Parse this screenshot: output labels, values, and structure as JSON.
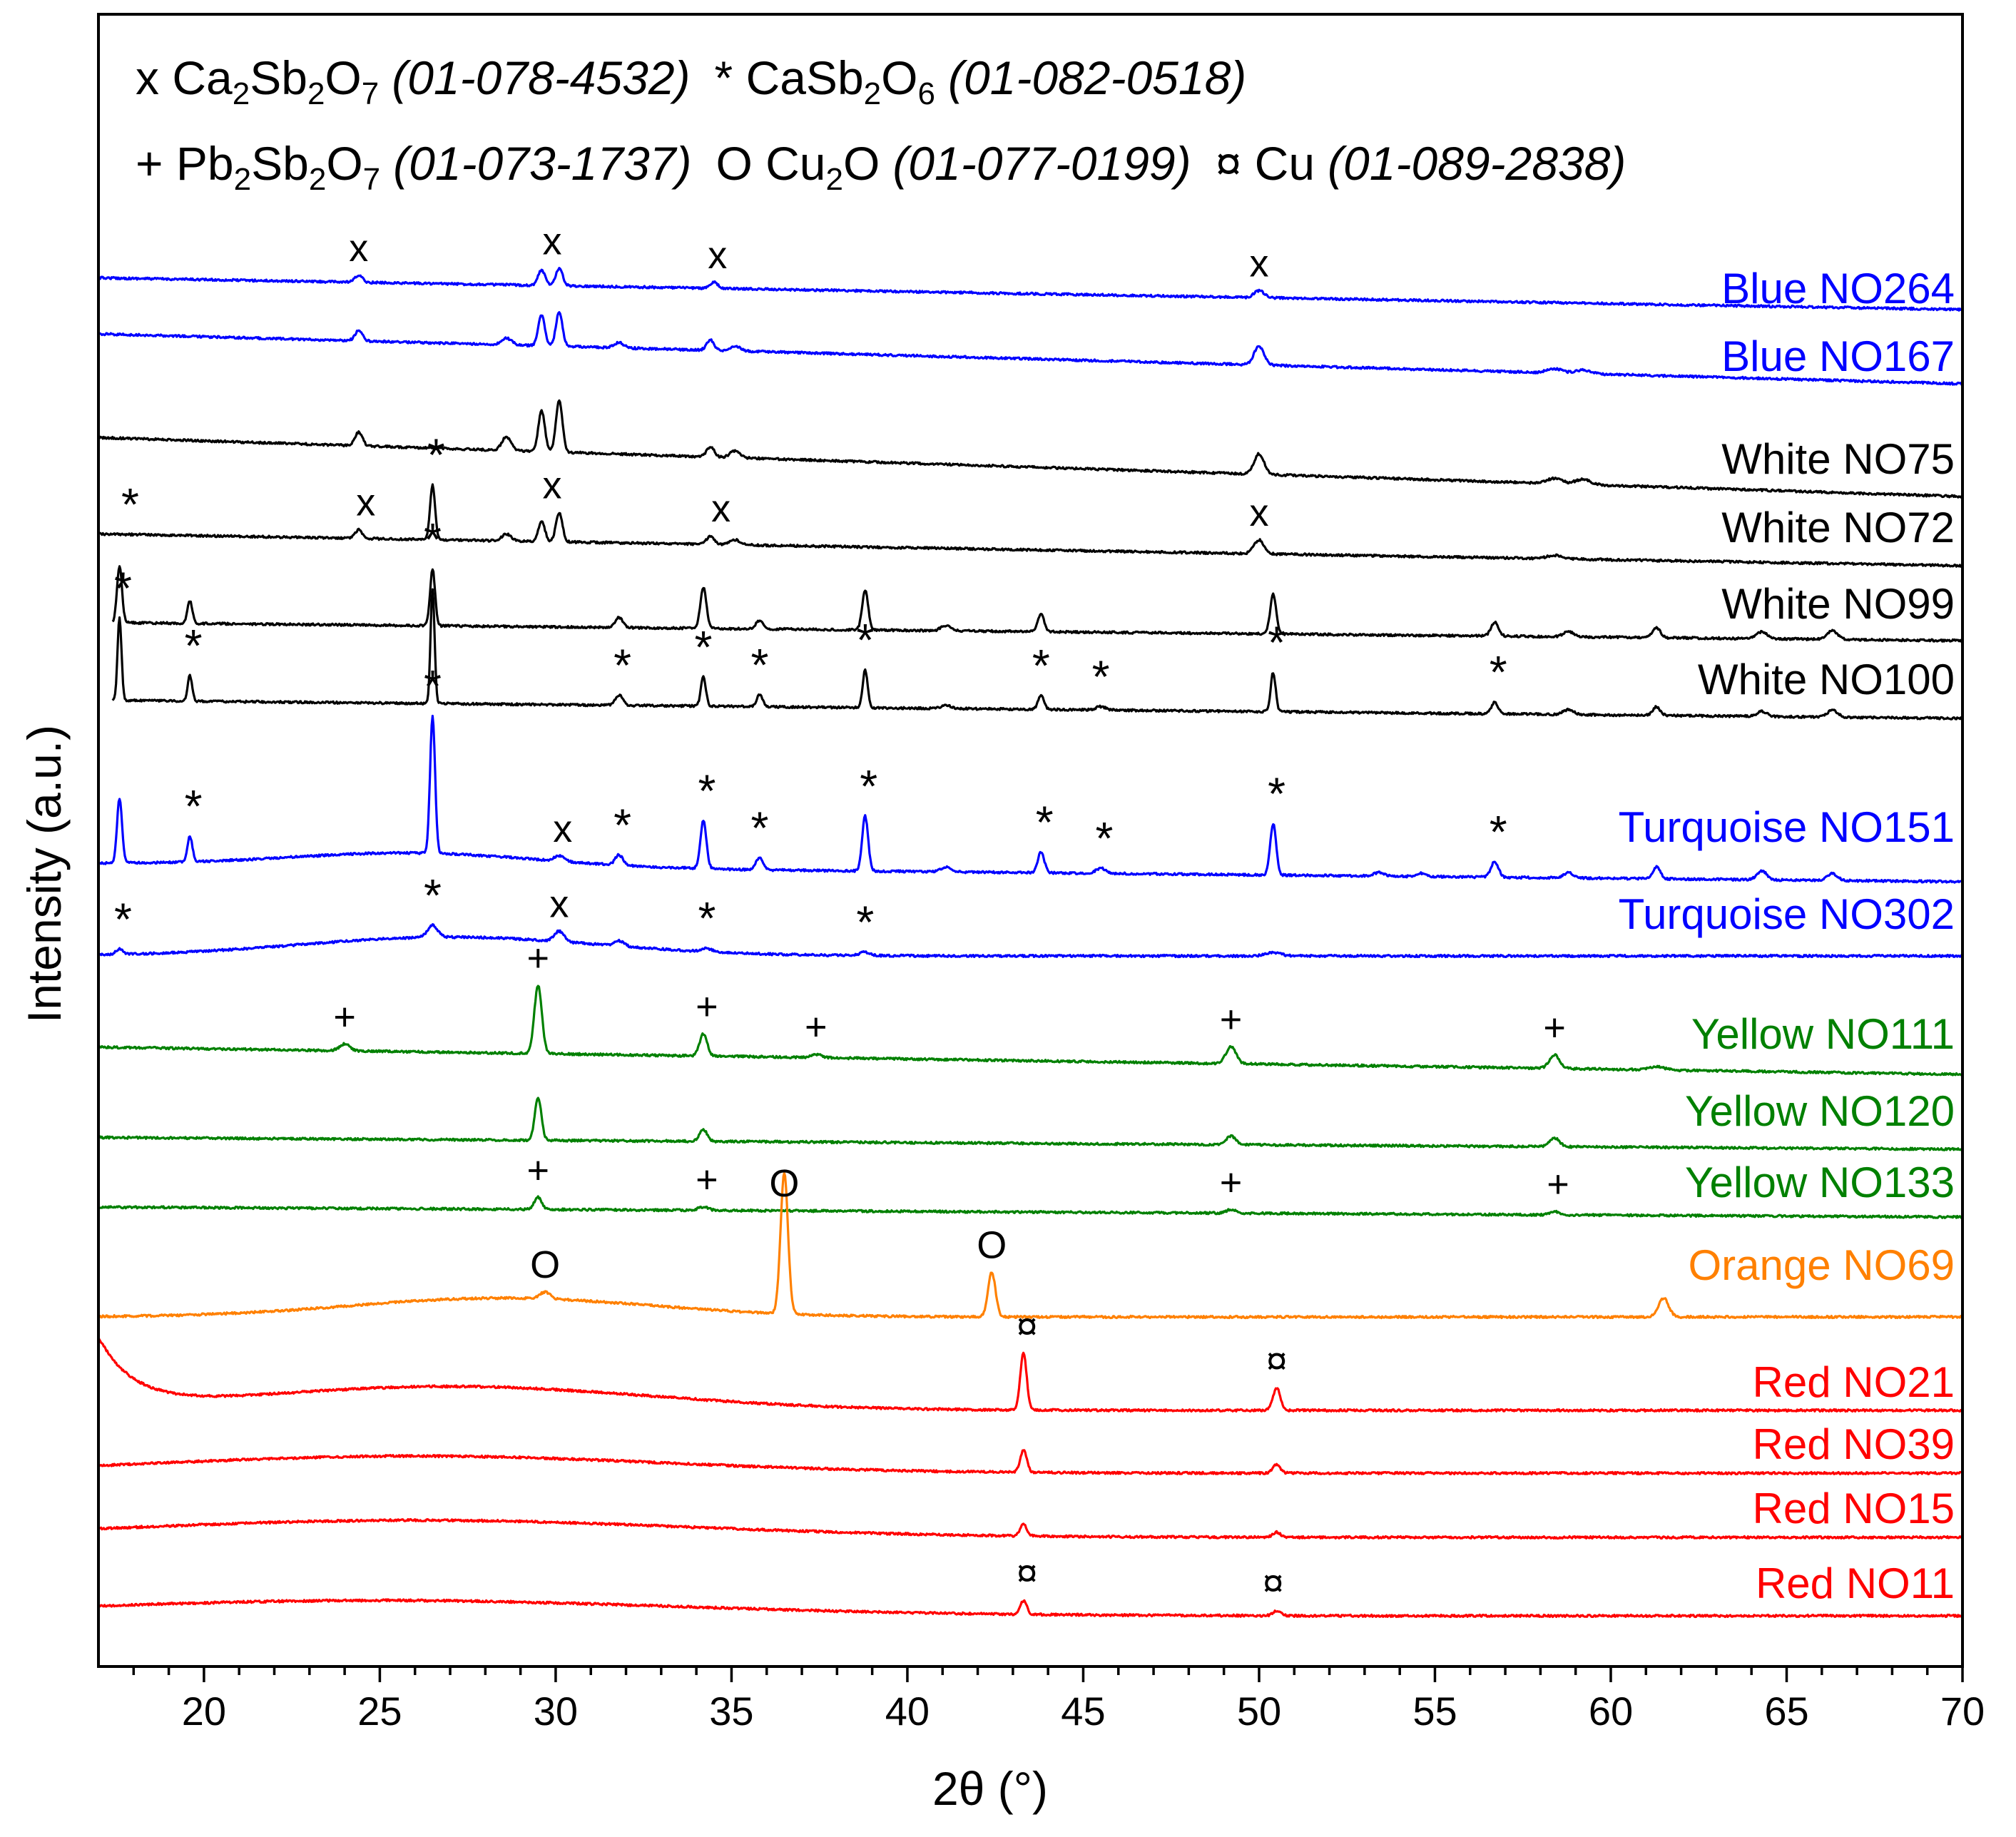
{
  "chart_data": {
    "type": "line",
    "subtype": "stacked XRD patterns",
    "title": "",
    "xlabel": "2θ (°)",
    "ylabel": "Intensity (a.u.)",
    "xlim": [
      17,
      70
    ],
    "xticks": [
      20,
      25,
      30,
      35,
      40,
      45,
      50,
      55,
      60,
      65,
      70
    ],
    "legend": {
      "position": "top",
      "rows": [
        [
          {
            "symbol": "x",
            "formula": [
              {
                "t": "Ca"
              },
              {
                "t": "2",
                "sub": true
              },
              {
                "t": "Sb"
              },
              {
                "t": "2",
                "sub": true
              },
              {
                "t": "O"
              },
              {
                "t": "7",
                "sub": true
              }
            ],
            "ref": "(01-078-4532)"
          },
          {
            "symbol": "*",
            "formula": [
              {
                "t": "CaSb"
              },
              {
                "t": "2",
                "sub": true
              },
              {
                "t": "O"
              },
              {
                "t": "6",
                "sub": true
              }
            ],
            "ref": "(01-082-0518)"
          }
        ],
        [
          {
            "symbol": "+",
            "formula": [
              {
                "t": "Pb"
              },
              {
                "t": "2",
                "sub": true
              },
              {
                "t": "Sb"
              },
              {
                "t": "2",
                "sub": true
              },
              {
                "t": "O"
              },
              {
                "t": "7",
                "sub": true
              }
            ],
            "ref": "(01-073-1737)"
          },
          {
            "symbol": "O",
            "formula": [
              {
                "t": "Cu"
              },
              {
                "t": "2",
                "sub": true
              },
              {
                "t": "O"
              }
            ],
            "ref": "(01-077-0199)"
          },
          {
            "symbol": "¤",
            "formula": [
              {
                "t": "Cu"
              }
            ],
            "ref": "(01-089-2838)"
          }
        ]
      ]
    },
    "series": [
      {
        "name": "Blue NO264",
        "color": "#0000ff",
        "x_start": 17,
        "offset": 0.8,
        "slope": 0.035,
        "hump": null,
        "peaks": [
          [
            24.4,
            0.4,
            0.15
          ],
          [
            29.6,
            0.9,
            0.14
          ],
          [
            30.1,
            1.0,
            0.14
          ],
          [
            34.5,
            0.35,
            0.15
          ],
          [
            50.0,
            0.4,
            0.2
          ]
        ]
      },
      {
        "name": "Blue NO167",
        "color": "#0000ff",
        "x_start": 17,
        "offset": 1.9,
        "slope": 0.055,
        "hump": null,
        "peaks": [
          [
            24.4,
            0.6,
            0.15
          ],
          [
            28.6,
            0.4,
            0.2
          ],
          [
            29.6,
            1.8,
            0.13
          ],
          [
            30.1,
            2.0,
            0.13
          ],
          [
            31.8,
            0.3,
            0.2
          ],
          [
            34.4,
            0.6,
            0.15
          ],
          [
            35.1,
            0.3,
            0.2
          ],
          [
            50.0,
            1.1,
            0.2
          ],
          [
            58.4,
            0.25,
            0.3
          ],
          [
            59.2,
            0.2,
            0.3
          ]
        ]
      },
      {
        "name": "White NO75",
        "color": "#000000",
        "x_start": 17,
        "offset": 3.3,
        "slope": 0.065,
        "hump": null,
        "peaks": [
          [
            24.4,
            0.8,
            0.15
          ],
          [
            28.6,
            0.8,
            0.18
          ],
          [
            29.6,
            2.4,
            0.13
          ],
          [
            30.1,
            3.0,
            0.13
          ],
          [
            34.4,
            0.6,
            0.15
          ],
          [
            35.1,
            0.4,
            0.2
          ],
          [
            50.0,
            1.2,
            0.2
          ],
          [
            58.4,
            0.3,
            0.3
          ],
          [
            59.2,
            0.3,
            0.3
          ]
        ]
      },
      {
        "name": "White NO72",
        "color": "#000000",
        "x_start": 17,
        "offset": 1.2,
        "slope": 0.035,
        "hump": null,
        "peaks": [
          [
            24.4,
            0.5,
            0.15
          ],
          [
            26.5,
            3.2,
            0.1
          ],
          [
            28.6,
            0.4,
            0.18
          ],
          [
            29.6,
            1.2,
            0.13
          ],
          [
            30.1,
            1.7,
            0.13
          ],
          [
            34.4,
            0.5,
            0.15
          ],
          [
            35.1,
            0.3,
            0.2
          ],
          [
            50.0,
            0.8,
            0.2
          ],
          [
            58.4,
            0.2,
            0.3
          ]
        ]
      },
      {
        "name": "White NO99",
        "color": "#000000",
        "x_start": 17.4,
        "offset": 0.7,
        "slope": 0.02,
        "hump": null,
        "peaks": [
          [
            17.6,
            3.3,
            0.1
          ],
          [
            19.6,
            1.3,
            0.1
          ],
          [
            26.5,
            3.3,
            0.1
          ],
          [
            31.8,
            0.6,
            0.15
          ],
          [
            34.2,
            2.4,
            0.12
          ],
          [
            35.8,
            0.5,
            0.15
          ],
          [
            38.8,
            2.3,
            0.12
          ],
          [
            41.1,
            0.3,
            0.2
          ],
          [
            43.8,
            1.0,
            0.13
          ],
          [
            50.4,
            2.3,
            0.12
          ],
          [
            56.7,
            0.8,
            0.15
          ],
          [
            58.8,
            0.3,
            0.2
          ],
          [
            61.3,
            0.6,
            0.15
          ],
          [
            64.3,
            0.4,
            0.2
          ],
          [
            66.3,
            0.5,
            0.2
          ]
        ]
      },
      {
        "name": "White NO100",
        "color": "#000000",
        "x_start": 17.4,
        "offset": 0.6,
        "slope": 0.02,
        "hump": null,
        "peaks": [
          [
            17.6,
            4.8,
            0.08
          ],
          [
            19.6,
            1.5,
            0.09
          ],
          [
            26.5,
            6.7,
            0.08
          ],
          [
            31.8,
            0.6,
            0.15
          ],
          [
            34.2,
            1.7,
            0.1
          ],
          [
            35.8,
            0.7,
            0.12
          ],
          [
            38.8,
            2.2,
            0.1
          ],
          [
            41.1,
            0.2,
            0.2
          ],
          [
            43.8,
            0.8,
            0.12
          ],
          [
            45.5,
            0.2,
            0.2
          ],
          [
            50.4,
            2.3,
            0.1
          ],
          [
            56.7,
            0.7,
            0.13
          ],
          [
            58.8,
            0.3,
            0.2
          ],
          [
            61.3,
            0.5,
            0.15
          ],
          [
            64.3,
            0.3,
            0.2
          ],
          [
            66.3,
            0.4,
            0.2
          ]
        ]
      },
      {
        "name": "Turquoise NO151",
        "color": "#0000ff",
        "x_start": 17,
        "offset": 0.8,
        "slope": 0.02,
        "hump": [
          26,
          0.8,
          5
        ],
        "peaks": [
          [
            17.6,
            3.8,
            0.1
          ],
          [
            19.6,
            1.5,
            0.1
          ],
          [
            26.5,
            8.0,
            0.1
          ],
          [
            30.1,
            0.3,
            0.2
          ],
          [
            31.8,
            0.6,
            0.15
          ],
          [
            34.2,
            2.8,
            0.12
          ],
          [
            35.8,
            0.7,
            0.15
          ],
          [
            38.8,
            3.2,
            0.12
          ],
          [
            41.1,
            0.3,
            0.2
          ],
          [
            43.8,
            1.2,
            0.13
          ],
          [
            45.5,
            0.3,
            0.2
          ],
          [
            50.4,
            3.0,
            0.12
          ],
          [
            53.4,
            0.2,
            0.2
          ],
          [
            54.6,
            0.2,
            0.2
          ],
          [
            56.7,
            0.9,
            0.15
          ],
          [
            58.8,
            0.3,
            0.2
          ],
          [
            61.3,
            0.7,
            0.15
          ],
          [
            64.3,
            0.5,
            0.2
          ],
          [
            66.3,
            0.4,
            0.2
          ]
        ]
      },
      {
        "name": "Turquoise NO302",
        "color": "#0000ff",
        "x_start": 17,
        "offset": 0.2,
        "slope": 0.0,
        "hump": [
          27,
          1.1,
          6
        ],
        "peaks": [
          [
            17.6,
            0.3,
            0.15
          ],
          [
            26.5,
            0.7,
            0.2
          ],
          [
            30.1,
            0.6,
            0.2
          ],
          [
            31.8,
            0.3,
            0.2
          ],
          [
            34.3,
            0.2,
            0.2
          ],
          [
            38.8,
            0.2,
            0.2
          ],
          [
            50.4,
            0.2,
            0.3
          ]
        ]
      },
      {
        "name": "Yellow NO111",
        "color": "#008000",
        "x_start": 17,
        "offset": 1.6,
        "slope": 0.03,
        "hump": null,
        "peaks": [
          [
            24.0,
            0.4,
            0.2
          ],
          [
            29.5,
            4.0,
            0.15
          ],
          [
            34.2,
            1.3,
            0.15
          ],
          [
            37.4,
            0.2,
            0.2
          ],
          [
            49.2,
            1.0,
            0.2
          ],
          [
            58.4,
            0.8,
            0.2
          ],
          [
            61.3,
            0.2,
            0.3
          ]
        ]
      },
      {
        "name": "Yellow NO120",
        "color": "#008000",
        "x_start": 17,
        "offset": 0.7,
        "slope": 0.013,
        "hump": null,
        "peaks": [
          [
            29.5,
            2.5,
            0.13
          ],
          [
            34.2,
            0.7,
            0.15
          ],
          [
            49.2,
            0.5,
            0.2
          ],
          [
            58.4,
            0.5,
            0.2
          ]
        ]
      },
      {
        "name": "Yellow NO133",
        "color": "#008000",
        "x_start": 17,
        "offset": 0.6,
        "slope": 0.011,
        "hump": null,
        "peaks": [
          [
            29.5,
            0.7,
            0.15
          ],
          [
            34.2,
            0.2,
            0.2
          ],
          [
            49.2,
            0.2,
            0.2
          ],
          [
            58.4,
            0.2,
            0.2
          ]
        ]
      },
      {
        "name": "Orange NO69",
        "color": "#ff8000",
        "x_start": 17,
        "offset": 0.0,
        "slope": 0.0,
        "hump": [
          28.5,
          1.1,
          6
        ],
        "peaks": [
          [
            29.7,
            0.4,
            0.2
          ],
          [
            36.5,
            8.2,
            0.15
          ],
          [
            42.4,
            2.6,
            0.15
          ],
          [
            61.5,
            1.1,
            0.2
          ]
        ]
      },
      {
        "name": "Red NO21",
        "color": "#ff0000",
        "x_start": 17,
        "offset": 0.1,
        "slope": 0.0,
        "hump": [
          27,
          1.4,
          8
        ],
        "decay": [
          4.0,
          1.0
        ],
        "peaks": [
          [
            43.3,
            3.3,
            0.13
          ],
          [
            50.5,
            1.3,
            0.15
          ]
        ]
      },
      {
        "name": "Red NO39",
        "color": "#ff0000",
        "x_start": 17,
        "offset": 0.1,
        "slope": 0.0,
        "hump": [
          26,
          1.0,
          10
        ],
        "peaks": [
          [
            43.3,
            1.3,
            0.13
          ],
          [
            50.5,
            0.5,
            0.15
          ]
        ]
      },
      {
        "name": "Red NO15",
        "color": "#ff0000",
        "x_start": 17,
        "offset": 0.1,
        "slope": 0.0,
        "hump": [
          26,
          1.0,
          11
        ],
        "peaks": [
          [
            43.3,
            0.7,
            0.13
          ],
          [
            50.5,
            0.3,
            0.15
          ]
        ]
      },
      {
        "name": "Red NO11",
        "color": "#ff0000",
        "x_start": 17,
        "offset": 0.15,
        "slope": 0.0,
        "hump": [
          25,
          0.9,
          12
        ],
        "peaks": [
          [
            43.3,
            0.8,
            0.13
          ],
          [
            50.5,
            0.3,
            0.15
          ]
        ]
      }
    ],
    "annotations": [
      {
        "series": "Blue NO264",
        "marks": [
          [
            "x",
            24.4
          ],
          [
            "x",
            29.9
          ],
          [
            "x",
            34.6
          ],
          [
            "x",
            50.0
          ]
        ]
      },
      {
        "series": "White NO72",
        "marks": [
          [
            "*",
            17.9
          ],
          [
            "x",
            24.6
          ],
          [
            "*",
            26.6
          ],
          [
            "x",
            29.9
          ],
          [
            "x",
            34.7
          ],
          [
            "x",
            50.0
          ]
        ]
      },
      {
        "series": "White NO99",
        "marks": [
          [
            "*",
            26.5
          ]
        ]
      },
      {
        "series": "White NO100",
        "marks": [
          [
            "*",
            17.7
          ],
          [
            "*",
            19.7
          ],
          [
            "*",
            31.9
          ],
          [
            "*",
            34.2
          ],
          [
            "*",
            35.8
          ],
          [
            "*",
            38.8
          ],
          [
            "*",
            43.8
          ],
          [
            "*",
            45.5
          ],
          [
            "*",
            50.5
          ],
          [
            "*",
            56.8
          ]
        ]
      },
      {
        "series": "Turquoise NO151",
        "marks": [
          [
            "*",
            26.5
          ],
          [
            "*",
            19.7
          ],
          [
            "x",
            30.2
          ],
          [
            "*",
            31.9
          ],
          [
            "*",
            34.3
          ],
          [
            "*",
            35.8
          ],
          [
            "*",
            38.9
          ],
          [
            "*",
            43.9
          ],
          [
            "*",
            45.6
          ],
          [
            "*",
            50.5
          ],
          [
            "*",
            56.8
          ]
        ]
      },
      {
        "series": "Turquoise NO302",
        "marks": [
          [
            "*",
            17.7
          ],
          [
            "*",
            26.5
          ],
          [
            "x",
            30.1
          ],
          [
            "*",
            34.3
          ],
          [
            "*",
            38.8
          ]
        ]
      },
      {
        "series": "Yellow NO111",
        "marks": [
          [
            "+",
            29.5
          ],
          [
            "+",
            24.0
          ],
          [
            "+",
            34.3
          ],
          [
            "+",
            37.4
          ],
          [
            "+",
            49.2
          ],
          [
            "+",
            58.4
          ]
        ]
      },
      {
        "series": "Yellow NO133",
        "marks": [
          [
            "+",
            29.5
          ],
          [
            "+",
            34.3
          ],
          [
            "O",
            36.5
          ],
          [
            "+",
            49.2
          ],
          [
            "+",
            58.5
          ]
        ]
      },
      {
        "series": "Orange NO69",
        "marks": [
          [
            "O",
            29.7
          ],
          [
            "O",
            42.4
          ]
        ]
      },
      {
        "series": "Red NO21",
        "marks": [
          [
            "¤",
            43.4
          ],
          [
            "¤",
            50.5
          ]
        ]
      },
      {
        "series": "Red NO11",
        "marks": [
          [
            "¤",
            43.4
          ],
          [
            "¤",
            50.4
          ]
        ]
      }
    ]
  }
}
